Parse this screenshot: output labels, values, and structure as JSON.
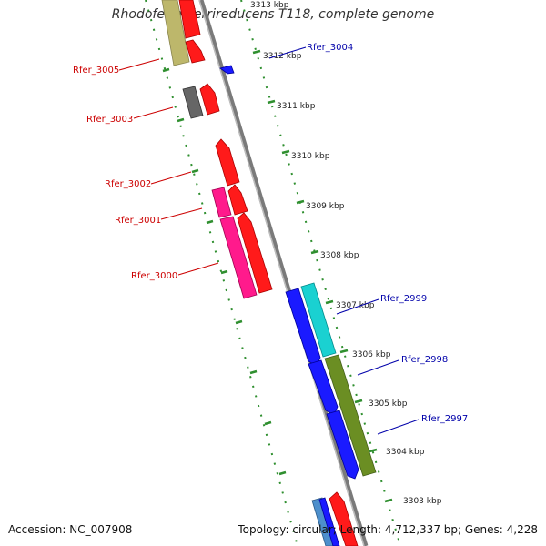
{
  "title": "Rhodoferax ferrireducens T118, complete genome",
  "footer": {
    "accession": "Accession: NC_007908",
    "summary": "Topology: circular; Length: 4,712,337 bp; Genes: 4,228"
  },
  "colors": {
    "axis": "#888888",
    "tick": "#2f8f2f",
    "forward_label": "#cc0000",
    "reverse_label": "#0000aa"
  },
  "scale_labels": [
    {
      "kbp": 3313,
      "text": "3313 kbp"
    },
    {
      "kbp": 3312,
      "text": "3312 kbp"
    },
    {
      "kbp": 3311,
      "text": "3311 kbp"
    },
    {
      "kbp": 3310,
      "text": "3310 kbp"
    },
    {
      "kbp": 3309,
      "text": "3309 kbp"
    },
    {
      "kbp": 3308,
      "text": "3308 kbp"
    },
    {
      "kbp": 3307,
      "text": "3307 kbp"
    },
    {
      "kbp": 3306,
      "text": "3306 kbp"
    },
    {
      "kbp": 3305,
      "text": "3305 kbp"
    },
    {
      "kbp": 3304,
      "text": "3304 kbp"
    },
    {
      "kbp": 3303,
      "text": "3303 kbp"
    }
  ],
  "gene_labels": {
    "left": [
      "Rfer_3005",
      "Rfer_3003",
      "Rfer_3002",
      "Rfer_3001",
      "Rfer_3000"
    ],
    "right": [
      "Rfer_3004",
      "Rfer_2999",
      "Rfer_2998",
      "Rfer_2997"
    ]
  }
}
